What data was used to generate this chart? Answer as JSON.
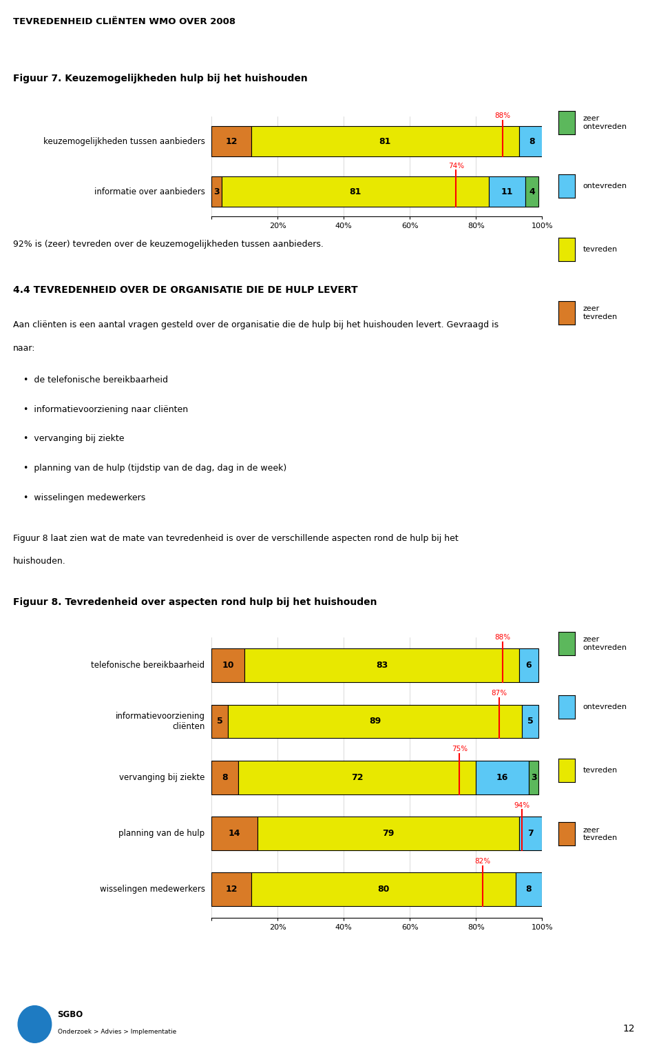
{
  "page_title": "TEVREDENHEID CLIËNTEN WMO OVER 2008",
  "fig7_title": "Figuur 7. Keuzemogelijkheden hulp bij het huishouden",
  "fig8_title": "Figuur 8. Tevredenheid over aspecten rond hulp bij het huishouden",
  "section_title": "4.4 TEVREDENHEID OVER DE ORGANISATIE DIE DE HULP LEVERT",
  "text_92pct": "92% is (zeer) tevreden over de keuzemogelijkheden tussen aanbieders.",
  "section_text1a": "Aan cliënten is een aantal vragen gesteld over de organisatie die de hulp bij het huishouden levert. Gevraagd is",
  "section_text1b": "naar:",
  "section_bullets": [
    "de telefonische bereikbaarheid",
    "informatievoorziening naar cliënten",
    "vervanging bij ziekte",
    "planning van de hulp (tijdstip van de dag, dag in de week)",
    "wisselingen medewerkers"
  ],
  "section_text2a": "Figuur 8 laat zien wat de mate van tevredenheid is over de verschillende aspecten rond de hulp bij het",
  "section_text2b": "huishouden.",
  "colors": {
    "zeer_tevreden": "#D97B27",
    "tevreden": "#E8E800",
    "ontevreden": "#5BC8F5",
    "zeer_ontevreden": "#5CB85C",
    "red_line": "#FF0000",
    "background": "#FFFFFF"
  },
  "fig7_data": {
    "categories": [
      "informatie over aanbieders",
      "keuzemogelijkheden tussen aanbieders"
    ],
    "zeer_tevreden": [
      3,
      12
    ],
    "tevreden": [
      81,
      81
    ],
    "ontevreden": [
      11,
      8
    ],
    "zeer_ontevreden": [
      4,
      0
    ],
    "red_line_pct": [
      74,
      88
    ],
    "red_line_labels": [
      "74%",
      "88%"
    ]
  },
  "fig8_data": {
    "categories": [
      "wisselingen medewerkers",
      "planning van de hulp",
      "vervanging bij ziekte",
      "informatievoorziening\ncliënten",
      "telefonische bereikbaarheid"
    ],
    "zeer_tevreden": [
      12,
      14,
      8,
      5,
      10
    ],
    "tevreden": [
      80,
      79,
      72,
      89,
      83
    ],
    "ontevreden": [
      8,
      7,
      16,
      5,
      6
    ],
    "zeer_ontevreden": [
      0,
      0,
      3,
      0,
      0
    ],
    "red_line_pct": [
      82,
      94,
      75,
      87,
      88
    ],
    "red_line_labels": [
      "82%",
      "94%",
      "75%",
      "87%",
      "88%"
    ]
  },
  "footnote": "12",
  "sgbo_color": "#1E7BC2"
}
